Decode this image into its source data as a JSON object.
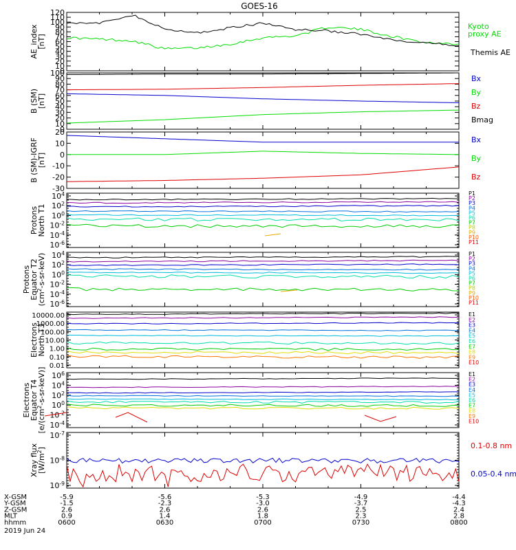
{
  "title": "GOES-16",
  "chart_data": [
    {
      "type": "line",
      "panel": "ae",
      "ylabel": [
        "AE_index",
        "[nT]"
      ],
      "ylim": [
        0,
        120
      ],
      "y_ticks": [
        "0",
        "10",
        "20",
        "30",
        "40",
        "50",
        "60",
        "70",
        "80",
        "90",
        "100",
        "110",
        "120"
      ],
      "x": [
        0,
        10,
        20,
        30,
        40,
        50,
        60,
        70,
        80,
        90,
        100,
        110,
        120
      ],
      "series": [
        {
          "name": "Kyoto proxy AE",
          "color": "#00dd00",
          "values": [
            68,
            65,
            62,
            45,
            47,
            55,
            68,
            72,
            90,
            85,
            70,
            58,
            55
          ],
          "legend": [
            "Kyoto",
            "proxy AE"
          ]
        },
        {
          "name": "Themis AE",
          "color": "#000000",
          "values": [
            100,
            97,
            115,
            85,
            78,
            88,
            98,
            85,
            82,
            75,
            62,
            56,
            52
          ],
          "legend": [
            "Themis AE"
          ]
        }
      ]
    },
    {
      "type": "line",
      "panel": "bsm",
      "ylabel": [
        "B (SM)",
        "[nT]"
      ],
      "ylim": [
        0,
        100
      ],
      "y_ticks": [
        "0",
        "10",
        "20",
        "30",
        "40",
        "50",
        "60",
        "70",
        "80",
        "90",
        "100"
      ],
      "x": [
        0,
        30,
        60,
        90,
        120
      ],
      "series": [
        {
          "name": "Bx",
          "color": "#0000cc",
          "values": [
            63,
            60,
            54,
            50,
            47
          ]
        },
        {
          "name": "By",
          "color": "#00dd00",
          "values": [
            11,
            17,
            26,
            31,
            34
          ]
        },
        {
          "name": "Bz",
          "color": "#dd0000",
          "values": [
            70,
            71,
            74,
            78,
            81
          ]
        },
        {
          "name": "Bmag",
          "color": "#000000",
          "values": [
            97,
            98,
            98,
            99,
            100
          ]
        }
      ]
    },
    {
      "type": "line",
      "panel": "bigrf",
      "ylabel": [
        "B (SM)-IGRF",
        "[nT]"
      ],
      "ylim": [
        -30,
        20
      ],
      "y_ticks": [
        "-30",
        "-20",
        "-10",
        "0",
        "10",
        "20"
      ],
      "x": [
        0,
        30,
        60,
        90,
        120
      ],
      "series": [
        {
          "name": "Bx",
          "color": "#0000cc",
          "values": [
            17,
            14,
            11,
            11,
            11
          ]
        },
        {
          "name": "By",
          "color": "#00dd00",
          "values": [
            0,
            0,
            3,
            1,
            0
          ]
        },
        {
          "name": "Bz",
          "color": "#dd0000",
          "values": [
            -24,
            -23,
            -21,
            -18,
            -11
          ]
        }
      ]
    },
    {
      "type": "line",
      "panel": "protons_t1",
      "log_scale": true,
      "ylabel": [
        "Protons",
        "North T1"
      ],
      "y_ticks": [
        "10^4",
        "10^2",
        "10^0",
        "10^-2",
        "10^-4",
        "10^-6"
      ],
      "series_names": [
        "P1",
        "P2",
        "P3",
        "P4",
        "P5",
        "P6",
        "P7",
        "P8",
        "P9",
        "P10",
        "P11"
      ]
    },
    {
      "type": "line",
      "panel": "protons_t2",
      "log_scale": true,
      "ylabel": [
        "Protons",
        "Equator T2",
        "(cm^2-s-sr-keV)"
      ],
      "y_ticks": [
        "10^4",
        "10^2",
        "10^0",
        "10^-2",
        "10^-4",
        "10^-6"
      ],
      "series_names": [
        "P1",
        "P2",
        "P3",
        "P4",
        "P5",
        "P6",
        "P7",
        "P8",
        "P9",
        "P10",
        "P11"
      ]
    },
    {
      "type": "line",
      "panel": "electrons_t3",
      "log_scale": true,
      "ylabel": [
        "Electrons",
        "North T3"
      ],
      "y_ticks": [
        "10000.00",
        "1000.00",
        "100.00",
        "10.00",
        "1.00",
        "0.10",
        "0.01"
      ],
      "series_names": [
        "E1",
        "E2",
        "E3",
        "E4",
        "E5",
        "E6",
        "E7",
        "E8",
        "E9",
        "E10"
      ]
    },
    {
      "type": "line",
      "panel": "electrons_t4",
      "log_scale": true,
      "ylabel": [
        "Electrons",
        "Equator T4",
        "[e/(cm^2-s-sr-keV)]"
      ],
      "y_ticks": [
        "10^6",
        "10^4",
        "10^2",
        "10^0",
        "10^-2",
        "10^-4"
      ],
      "series_names": [
        "E1",
        "E2",
        "E3",
        "E4",
        "E5",
        "E6",
        "E7",
        "E8",
        "E9",
        "E10"
      ]
    },
    {
      "type": "line",
      "panel": "xray",
      "log_scale": true,
      "ylabel": [
        "Xray flux",
        "[W/m^2]"
      ],
      "y_ticks": [
        "10^-7",
        "10^-8",
        "10^-9"
      ],
      "series": [
        {
          "name": "0.1-0.8 nm",
          "color": "#dd0000"
        },
        {
          "name": "0.05-0.4 nm",
          "color": "#0000cc"
        }
      ]
    }
  ],
  "ephemeris": {
    "labels": [
      "X-GSM",
      "Y-GSM",
      "Z-GSM",
      "MLT",
      "hhmm"
    ],
    "columns": [
      [
        "-5.9",
        "-1.5",
        "2.6",
        "0.9",
        "0600"
      ],
      [
        "-5.6",
        "-2.3",
        "2.6",
        "1.4",
        "0630"
      ],
      [
        "-5.3",
        "-3.0",
        "2.6",
        "1.8",
        "0700"
      ],
      [
        "-4.9",
        "-3.7",
        "2.5",
        "2.3",
        "0730"
      ],
      [
        "-4.4",
        "-4.3",
        "2.4",
        "2.8",
        "0800"
      ]
    ],
    "date": "2019 Jun 24"
  }
}
